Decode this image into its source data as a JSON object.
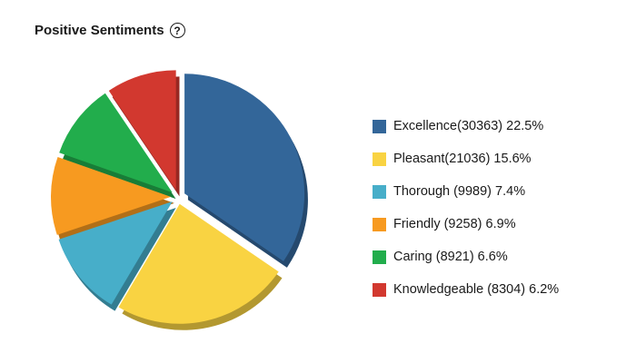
{
  "header": {
    "title": "Positive Sentiments",
    "help_icon": "question-circle-icon",
    "help_glyph": "?"
  },
  "chart_data": {
    "type": "pie",
    "title": "Positive Sentiments",
    "slices": [
      {
        "label": "Excellence(30363) 22.5%",
        "name": "Excellence",
        "value": 30363,
        "percent": 22.5,
        "color": "#336699"
      },
      {
        "label": "Pleasant(21036) 15.6%",
        "name": "Pleasant",
        "value": 21036,
        "percent": 15.6,
        "color": "#f9d342"
      },
      {
        "label": "Thorough (9989) 7.4%",
        "name": "Thorough",
        "value": 9989,
        "percent": 7.4,
        "color": "#47aec9"
      },
      {
        "label": "Friendly (9258) 6.9%",
        "name": "Friendly",
        "value": 9258,
        "percent": 6.9,
        "color": "#f79a20"
      },
      {
        "label": "Caring (8921) 6.6%",
        "name": "Caring",
        "value": 8921,
        "percent": 6.6,
        "color": "#22ad4c"
      },
      {
        "label": "Knowledgeable (8304) 6.2%",
        "name": "Knowledgeable",
        "value": 8304,
        "percent": 6.2,
        "color": "#d2382f"
      }
    ],
    "legend_position": "right"
  }
}
